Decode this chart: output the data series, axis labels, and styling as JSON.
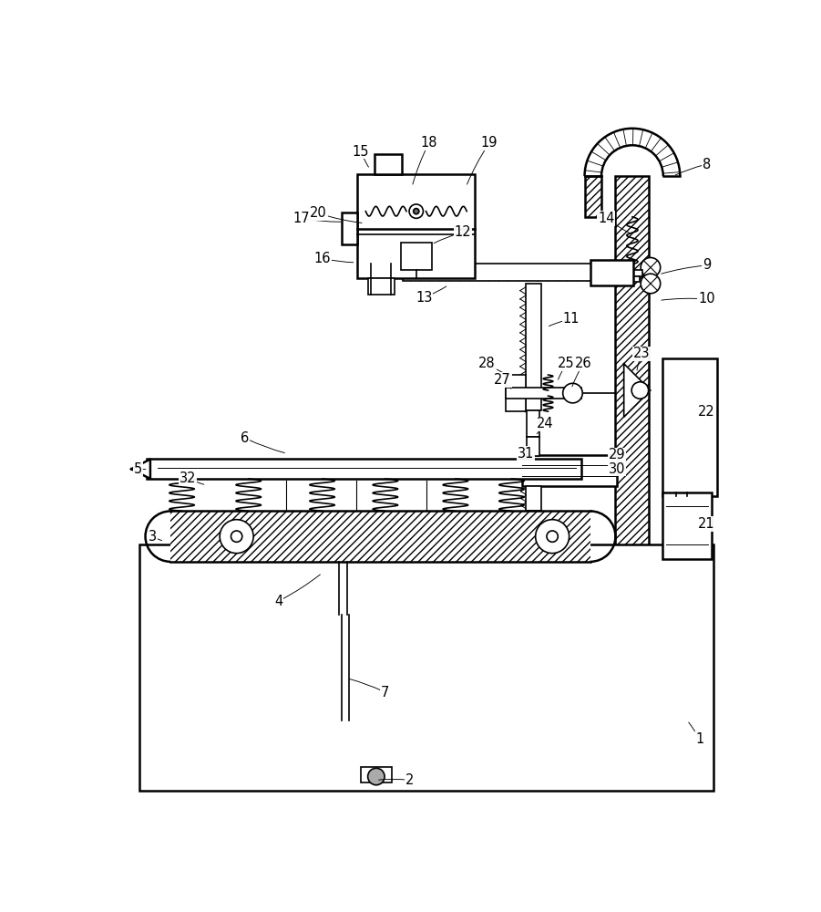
{
  "bg_color": "#ffffff",
  "line_color": "#000000",
  "figsize": [
    9.01,
    10.0
  ],
  "dpi": 100
}
